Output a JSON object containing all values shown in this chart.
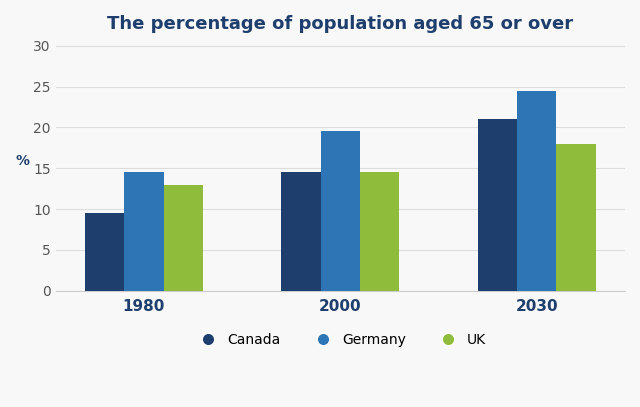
{
  "title": "The percentage of population aged 65 or over",
  "years": [
    "1980",
    "2000",
    "2030"
  ],
  "series": {
    "Canada": [
      9.5,
      14.5,
      21.0
    ],
    "Germany": [
      14.5,
      19.5,
      24.5
    ],
    "UK": [
      13.0,
      14.5,
      18.0
    ]
  },
  "colors": {
    "Canada": "#1e3f6e",
    "Germany": "#2e75b6",
    "UK": "#8fbc3a"
  },
  "ylabel": "%",
  "ylim": [
    0,
    30
  ],
  "yticks": [
    0,
    5,
    10,
    15,
    20,
    25,
    30
  ],
  "bar_width": 0.2,
  "title_color": "#1e3f6e",
  "title_fontsize": 13,
  "xtick_color": "#1e3f6e",
  "xtick_fontsize": 11,
  "ytick_fontsize": 10,
  "ytick_color": "#555555",
  "legend_fontsize": 10,
  "ylabel_fontsize": 10,
  "ylabel_color": "#1e3f6e",
  "background_color": "#f8f8f8",
  "grid_color": "#dddddd"
}
